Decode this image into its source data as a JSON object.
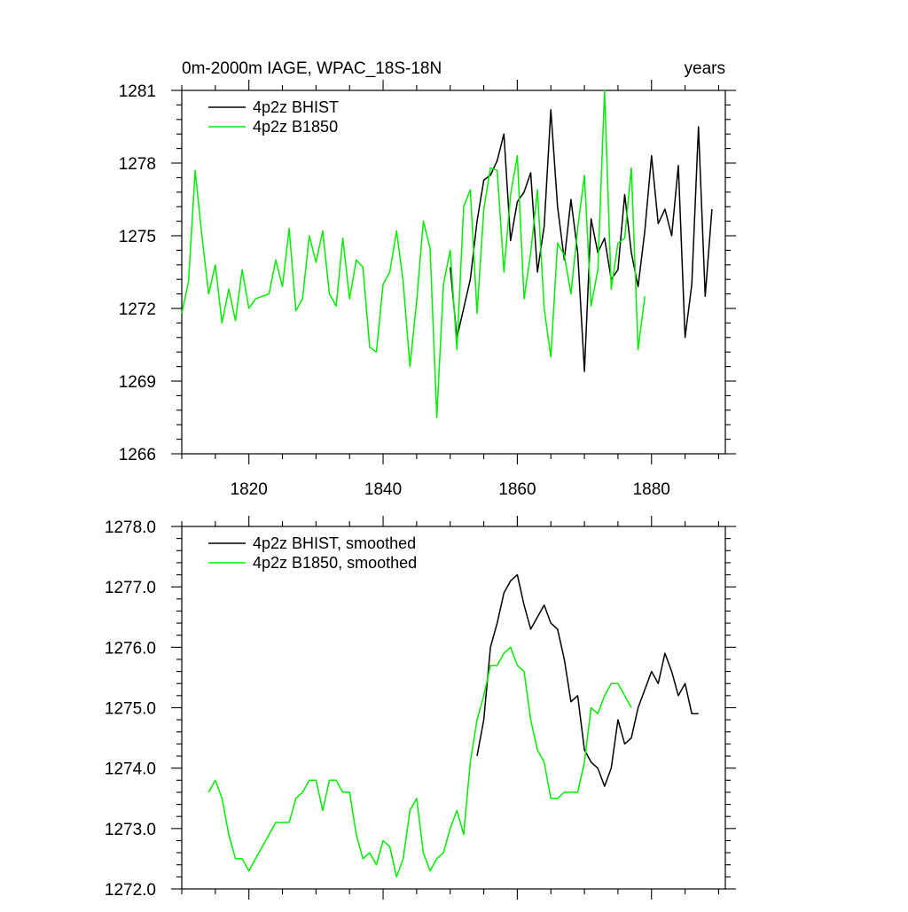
{
  "chart_data": [
    {
      "type": "line",
      "title": "0m-2000m IAGE, WPAC_18S-18N",
      "title_right": "years",
      "xlabel": "",
      "ylabel": "",
      "xlim": [
        1810,
        1891
      ],
      "ylim": [
        1266,
        1281
      ],
      "xticks": [
        1820,
        1840,
        1860,
        1880
      ],
      "xtick_labels": [
        "1820",
        "1840",
        "1860",
        "1880"
      ],
      "yticks": [
        1266,
        1269,
        1272,
        1275,
        1278,
        1281
      ],
      "ytick_labels": [
        "1266",
        "1269",
        "1272",
        "1275",
        "1278",
        "1281"
      ],
      "legend_position": "top-left",
      "grid": false,
      "series": [
        {
          "name": "4p2z BHIST",
          "color": "#000000",
          "x_start": 1850,
          "values": [
            1273.7,
            1270.8,
            1272.0,
            1273.2,
            1275.6,
            1277.3,
            1277.5,
            1278.1,
            1279.2,
            1274.8,
            1276.4,
            1276.8,
            1277.6,
            1273.5,
            1275.4,
            1280.2,
            1276.2,
            1274.0,
            1276.5,
            1274.3,
            1269.4,
            1275.7,
            1274.3,
            1274.9,
            1273.2,
            1273.6,
            1276.7,
            1274.3,
            1272.9,
            1275.2,
            1278.3,
            1275.5,
            1276.1,
            1275.0,
            1277.9,
            1270.8,
            1273.0,
            1279.5,
            1272.5,
            1276.1
          ]
        },
        {
          "name": "4p2z B1850",
          "color": "#00ee00",
          "x_start": 1810,
          "values": [
            1271.8,
            1273.1,
            1277.7,
            1275.0,
            1272.6,
            1273.8,
            1271.4,
            1272.8,
            1271.5,
            1273.6,
            1272.0,
            1272.4,
            1272.5,
            1272.6,
            1274.0,
            1272.9,
            1275.3,
            1271.9,
            1272.4,
            1275.0,
            1273.9,
            1275.2,
            1272.6,
            1272.1,
            1274.9,
            1272.4,
            1274.0,
            1273.7,
            1270.4,
            1270.2,
            1273.0,
            1273.5,
            1275.2,
            1273.1,
            1269.6,
            1272.3,
            1275.6,
            1274.5,
            1267.5,
            1273.0,
            1274.4,
            1270.3,
            1276.2,
            1276.9,
            1271.8,
            1276.1,
            1277.8,
            1277.7,
            1273.5,
            1276.7,
            1278.3,
            1272.4,
            1274.3,
            1276.9,
            1272.0,
            1270.0,
            1274.7,
            1274.2,
            1272.6,
            1275.3,
            1277.5,
            1272.1,
            1273.6,
            1281.0,
            1272.8,
            1274.7,
            1274.9,
            1277.8,
            1270.3,
            1272.5
          ]
        }
      ]
    },
    {
      "type": "line",
      "title": "",
      "xlabel": "",
      "ylabel": "",
      "xlim": [
        1810,
        1891
      ],
      "ylim": [
        1272.0,
        1278.0
      ],
      "xticks": [
        1820,
        1840,
        1860,
        1880
      ],
      "xtick_labels": [],
      "yticks": [
        1272.0,
        1273.0,
        1274.0,
        1275.0,
        1276.0,
        1277.0,
        1278.0
      ],
      "ytick_labels": [
        "1272.0",
        "1273.0",
        "1274.0",
        "1275.0",
        "1276.0",
        "1277.0",
        "1278.0"
      ],
      "legend_position": "top-left",
      "grid": false,
      "series": [
        {
          "name": "4p2z BHIST, smoothed",
          "color": "#000000",
          "x_start": 1854,
          "values": [
            1274.2,
            1274.8,
            1276.0,
            1276.4,
            1276.9,
            1277.1,
            1277.2,
            1276.7,
            1276.3,
            1276.5,
            1276.7,
            1276.4,
            1276.3,
            1275.8,
            1275.1,
            1275.2,
            1274.3,
            1274.1,
            1274.0,
            1273.7,
            1274.0,
            1274.8,
            1274.4,
            1274.5,
            1275.0,
            1275.3,
            1275.6,
            1275.4,
            1275.9,
            1275.6,
            1275.2,
            1275.4,
            1274.9,
            1274.9
          ]
        },
        {
          "name": "4p2z B1850, smoothed",
          "color": "#00ee00",
          "x_start": 1814,
          "values": [
            1273.6,
            1273.8,
            1273.5,
            1272.9,
            1272.5,
            1272.5,
            1272.3,
            1272.5,
            1272.7,
            1272.9,
            1273.1,
            1273.1,
            1273.1,
            1273.5,
            1273.6,
            1273.8,
            1273.8,
            1273.3,
            1273.8,
            1273.8,
            1273.6,
            1273.6,
            1272.9,
            1272.5,
            1272.6,
            1272.4,
            1272.8,
            1272.7,
            1272.2,
            1272.5,
            1273.3,
            1273.5,
            1272.6,
            1272.3,
            1272.5,
            1272.6,
            1273.0,
            1273.3,
            1272.9,
            1274.1,
            1274.8,
            1275.2,
            1275.7,
            1275.7,
            1275.9,
            1276.0,
            1275.7,
            1275.6,
            1274.8,
            1274.3,
            1274.1,
            1273.5,
            1273.5,
            1273.6,
            1273.6,
            1273.6,
            1274.1,
            1275.0,
            1274.9,
            1275.2,
            1275.4,
            1275.4,
            1275.2,
            1275.0
          ]
        }
      ]
    }
  ]
}
